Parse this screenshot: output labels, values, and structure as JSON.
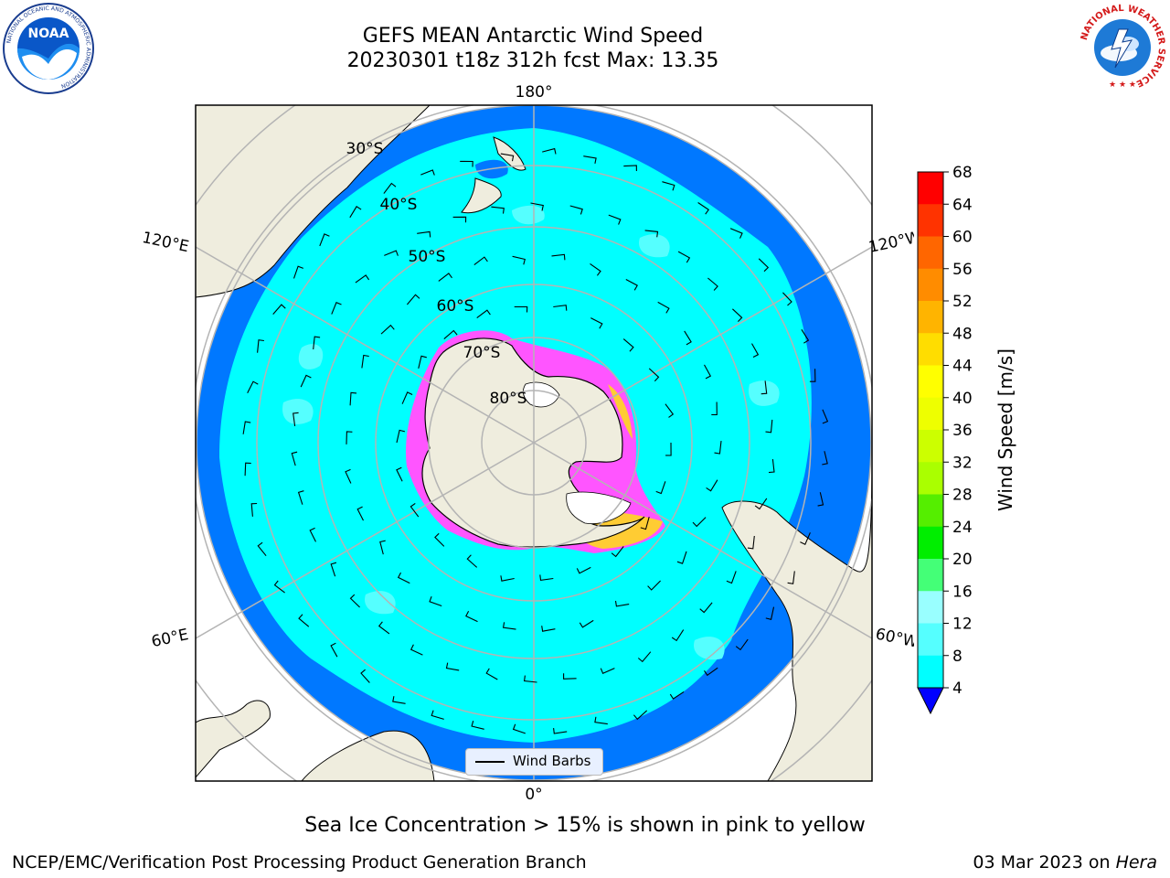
{
  "title": {
    "line1": "GEFS MEAN Antarctic Wind Speed",
    "line2": "20230301 t18z 312h fcst   Max: 13.35"
  },
  "map": {
    "projection": "South Polar Stereographic",
    "longitude_labels": {
      "top": "180°",
      "bottom": "0°",
      "upper_left": "120°E",
      "upper_right": "120°W",
      "lower_left": "60°E",
      "lower_right": "60°W"
    },
    "latitude_labels": [
      "30°S",
      "40°S",
      "50°S",
      "60°S",
      "70°S",
      "80°S"
    ],
    "colors": {
      "land": "#efedde",
      "ocean_low": "#0078ff",
      "ocean_mid": "#00ffff",
      "ocean_high": "#55ffff",
      "sea_ice_pink": "#ff55ff",
      "sea_ice_yellow": "#ffcc33",
      "gridline": "#b4b4b4"
    },
    "legend": {
      "label": "Wind Barbs"
    }
  },
  "colorbar": {
    "label": "Wind Speed [m/s]",
    "ticks": [
      "68",
      "64",
      "60",
      "56",
      "52",
      "48",
      "44",
      "40",
      "36",
      "32",
      "28",
      "24",
      "20",
      "16",
      "12",
      "8",
      "4"
    ],
    "colors_top_to_bottom": [
      "#ff0000",
      "#ff3300",
      "#ff6600",
      "#ff8c00",
      "#ffb400",
      "#ffdd00",
      "#ffff00",
      "#eeff00",
      "#ccff00",
      "#aaff00",
      "#55ee00",
      "#00ee00",
      "#44ff77",
      "#99ffff",
      "#55ffff",
      "#00ffff",
      "#0078ff"
    ],
    "extend_color": "#0000ff"
  },
  "caption": "Sea Ice Concentration > 15% is shown in pink to yellow",
  "footer": {
    "left": "NCEP/EMC/Verification Post Processing Product Generation Branch",
    "right_date": "03 Mar 2023 on ",
    "right_host": "Hera"
  },
  "logos": {
    "noaa": {
      "text": "NOAA",
      "ring_text": "NATIONAL OCEANIC AND ATMOSPHERIC ADMINISTRATION"
    },
    "nws": {
      "ring_text": "NATIONAL WEATHER SERVICE"
    }
  }
}
